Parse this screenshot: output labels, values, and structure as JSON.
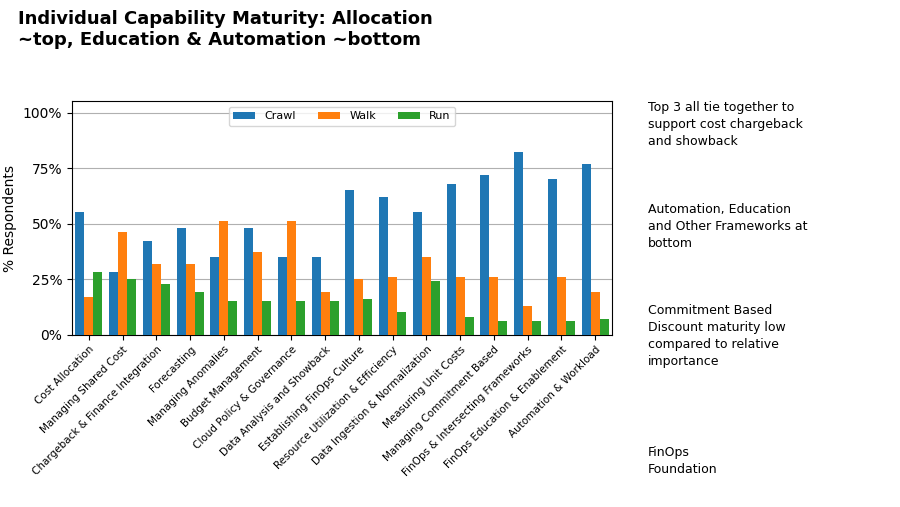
{
  "chart_data": {
    "type": "bar",
    "title": "Individual Capability Maturity: Allocation\n~top, Education & Automation ~bottom",
    "categories": [
      "Cost Allocation",
      "Managing Shared Cost",
      "Chargeback & Finance Integration",
      "Forecasting",
      "Managing Anomalies",
      "Budget Management",
      "Cloud Policy & Governance",
      "Data Analysis and Showback",
      "Establishing FinOps Culture",
      "Resource Utilization & Efficiency",
      "Data Ingestion & Normalization",
      "Measuring Unit Costs",
      "Managing Commitment Based",
      "FinOps & Intersecting Frameworks",
      "FinOps Education & Enablement",
      "Automation & Workload"
    ],
    "series": [
      {
        "name": "Crawl",
        "values": [
          55,
          28,
          42,
          48,
          35,
          48,
          35,
          35,
          65,
          62,
          55,
          68,
          72,
          82,
          70,
          77
        ]
      },
      {
        "name": "Walk",
        "values": [
          17,
          46,
          32,
          32,
          51,
          37,
          51,
          19,
          25,
          26,
          35,
          26,
          26,
          13,
          26,
          19
        ]
      },
      {
        "name": "Run",
        "values": [
          28,
          25,
          23,
          19,
          15,
          15,
          15,
          15,
          16,
          10,
          24,
          8,
          6,
          6,
          6,
          7
        ]
      }
    ],
    "y_label": "% Respondents",
    "ylim": [
      0,
      105
    ],
    "yticks": [
      {
        "value": 0,
        "label": "0%"
      },
      {
        "value": 25,
        "label": "25%"
      },
      {
        "value": 50,
        "label": "50%"
      },
      {
        "value": 75,
        "label": "75%"
      },
      {
        "value": 100,
        "label": "100%"
      }
    ],
    "grid": true,
    "legend": "upper center",
    "annotations": [
      "Top 3 all tie together to\nsupport cost chargeback\nand showback",
      "Automation, Education\nand Other Frameworks at\nbottom",
      "Commitment Based\nDiscount maturity low\ncompared to relative\nimportance",
      "FinOps\nFoundation"
    ]
  }
}
